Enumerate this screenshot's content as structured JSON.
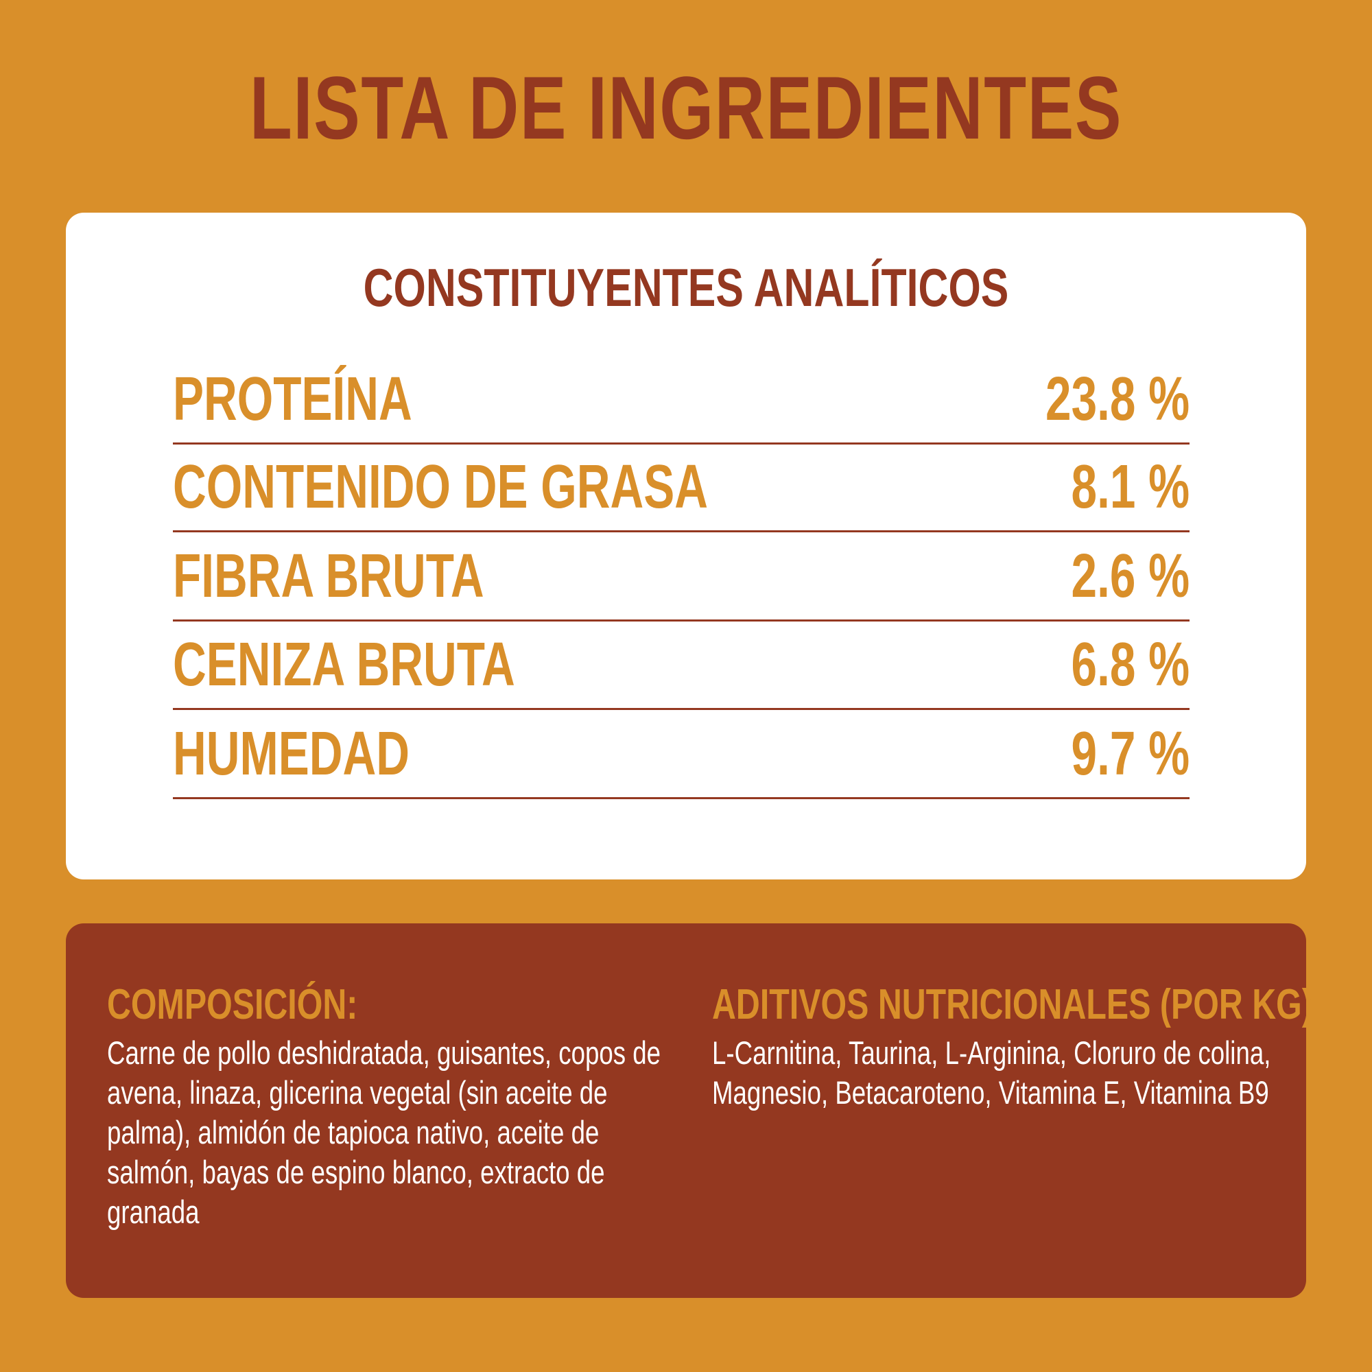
{
  "title": "LISTA DE INGREDIENTES",
  "analytic": {
    "heading": "CONSTITUYENTES ANALÍTICOS",
    "rows": [
      {
        "label": "PROTEÍNA",
        "value": "23.8 %"
      },
      {
        "label": "CONTENIDO DE GRASA",
        "value": "8.1 %"
      },
      {
        "label": "FIBRA BRUTA",
        "value": "2.6 %"
      },
      {
        "label": "CENIZA BRUTA",
        "value": "6.8 %"
      },
      {
        "label": "HUMEDAD",
        "value": "9.7 %"
      }
    ]
  },
  "composition": {
    "heading": "COMPOSICIÓN:",
    "text": "Carne de pollo deshidratada, guisantes, copos de avena, linaza, glicerina vegetal (sin aceite de palma), almidón de tapioca nativo, aceite de salmón, bayas de espino blanco, extracto de granada"
  },
  "additives": {
    "heading": "ADITIVOS NUTRICIONALES (POR KG):",
    "text": "L-Carnitina, Taurina, L-Arginina, Cloruro de colina, Magnesio, Betacaroteno, Vitamina E, Vitamina B9"
  },
  "colors": {
    "background": "#d98f2a",
    "brown": "#943820",
    "white": "#ffffff"
  }
}
